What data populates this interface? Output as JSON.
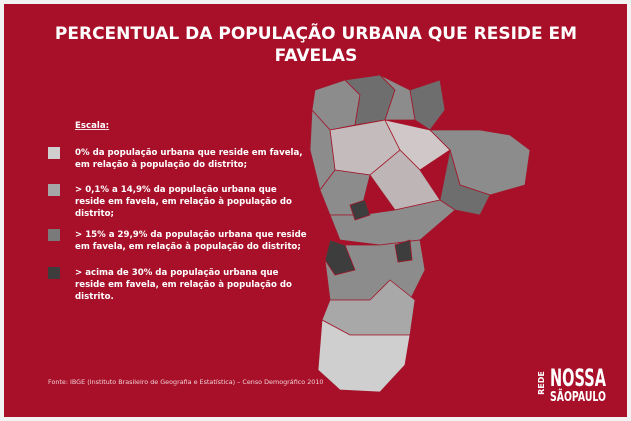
{
  "title": {
    "lines": [
      "PERCENTUAL DA POPULAÇÃO URBANA QUE RESIDE EM",
      "FAVELAS"
    ]
  },
  "legend": {
    "heading": "Escala:",
    "items": [
      {
        "color": "#cfcfcf",
        "lines": [
          "0% da população urbana que reside em favela,",
          "em relação à população do distrito;"
        ]
      },
      {
        "color": "#a6a6a6",
        "lines": [
          "> 0,1% a 14,9% da população urbana que",
          "reside em favela, em relação à população do",
          "distrito;"
        ]
      },
      {
        "color": "#7a7a7a",
        "lines": [
          "> 15% a 29,9% da população urbana que reside",
          "em favela, em relação à população do distrito;"
        ]
      },
      {
        "color": "#3d3d3d",
        "lines": [
          "> acima de 30% da população urbana que",
          "reside em favela, em relação à população do",
          "distrito."
        ]
      }
    ]
  },
  "source": "Fonte: IBGE (Instituto Brasileiro de Geografia e Estatística) – Censo Demográfico 2010",
  "logo": {
    "side": "REDE",
    "top": "NOSSA",
    "bottom": "SÃOPAULO"
  }
}
